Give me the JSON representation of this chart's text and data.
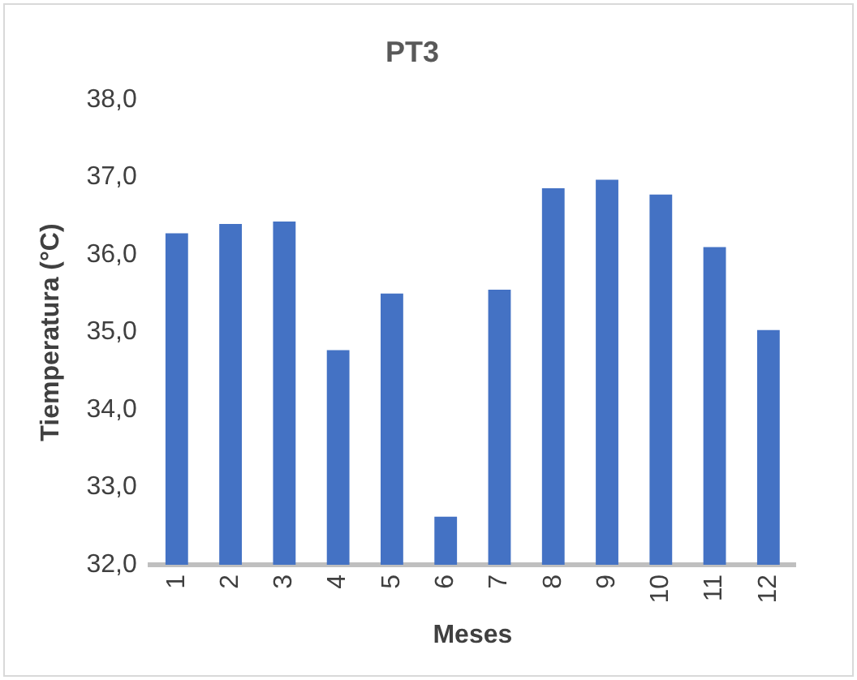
{
  "chart_data": {
    "type": "bar",
    "title": "PT3",
    "xlabel": "Meses",
    "ylabel": "Tiemperatura (°C)",
    "categories": [
      "1",
      "2",
      "3",
      "4",
      "5",
      "6",
      "7",
      "8",
      "9",
      "10",
      "11",
      "12"
    ],
    "values": [
      36.28,
      36.4,
      36.43,
      34.77,
      35.5,
      32.62,
      35.55,
      36.86,
      36.97,
      36.78,
      36.1,
      35.03
    ],
    "color": "#4472c4",
    "ylim": [
      32,
      38
    ],
    "yticks": [
      {
        "value": 32,
        "label": "32,0"
      },
      {
        "value": 33,
        "label": "33,0"
      },
      {
        "value": 34,
        "label": "34,0"
      },
      {
        "value": 35,
        "label": "35,0"
      },
      {
        "value": 36,
        "label": "36,0"
      },
      {
        "value": 37,
        "label": "37,0"
      },
      {
        "value": 38,
        "label": "38,0"
      }
    ],
    "grid": false,
    "legend": false
  }
}
